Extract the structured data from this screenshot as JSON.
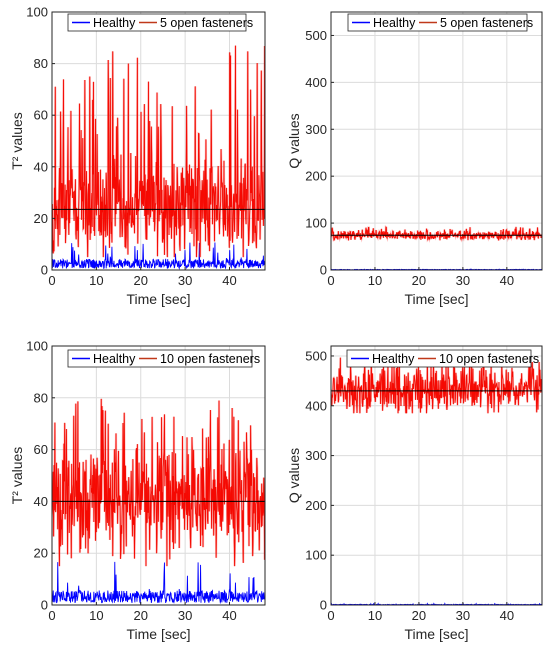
{
  "chart_data": [
    {
      "type": "line",
      "xlabel": "Time [sec]",
      "ylabel": "T² values",
      "xlim": [
        0,
        48
      ],
      "ylim": [
        0,
        100
      ],
      "xticks": [
        0,
        10,
        20,
        30,
        40
      ],
      "yticks": [
        0,
        20,
        40,
        60,
        80,
        100
      ],
      "grid": true,
      "legend_position": "top-left",
      "threshold": 23.5,
      "series": [
        {
          "name": "Healthy",
          "color": "#0000ff",
          "mean": 3,
          "range": [
            0,
            11
          ]
        },
        {
          "name": "5 open fasteners",
          "color": "#ff0000",
          "mean": 25,
          "range": [
            5,
            87
          ]
        }
      ]
    },
    {
      "type": "line",
      "xlabel": "Time [sec]",
      "ylabel": "Q values",
      "xlim": [
        0,
        48
      ],
      "ylim": [
        0,
        550
      ],
      "xticks": [
        0,
        10,
        20,
        30,
        40
      ],
      "yticks": [
        0,
        100,
        200,
        300,
        400,
        500
      ],
      "grid": true,
      "legend_position": "top-right",
      "threshold": 74,
      "series": [
        {
          "name": "Healthy",
          "color": "#0000ff",
          "mean": 1,
          "range": [
            0,
            2
          ]
        },
        {
          "name": "5 open fasteners",
          "color": "#ff0000",
          "mean": 74,
          "range": [
            63,
            92
          ]
        }
      ]
    },
    {
      "type": "line",
      "xlabel": "Time [sec]",
      "ylabel": "T² values",
      "xlim": [
        0,
        48
      ],
      "ylim": [
        0,
        100
      ],
      "xticks": [
        0,
        10,
        20,
        30,
        40
      ],
      "yticks": [
        0,
        20,
        40,
        60,
        80,
        100
      ],
      "grid": true,
      "legend_position": "top-left",
      "threshold": 40,
      "series": [
        {
          "name": "Healthy",
          "color": "#0000ff",
          "mean": 4,
          "range": [
            0,
            18
          ]
        },
        {
          "name": "10 open fasteners",
          "color": "#ff0000",
          "mean": 41,
          "range": [
            15,
            80
          ]
        }
      ]
    },
    {
      "type": "line",
      "xlabel": "Time [sec]",
      "ylabel": "Q values",
      "xlim": [
        0,
        48
      ],
      "ylim": [
        0,
        520
      ],
      "xticks": [
        0,
        10,
        20,
        30,
        40
      ],
      "yticks": [
        0,
        100,
        200,
        300,
        400,
        500
      ],
      "grid": true,
      "legend_position": "top-right",
      "threshold": 430,
      "series": [
        {
          "name": "Healthy",
          "color": "#0000ff",
          "mean": 1,
          "range": [
            0,
            3
          ]
        },
        {
          "name": "10 open fasteners",
          "color": "#ff0000",
          "mean": 430,
          "range": [
            385,
            500
          ]
        }
      ]
    }
  ]
}
